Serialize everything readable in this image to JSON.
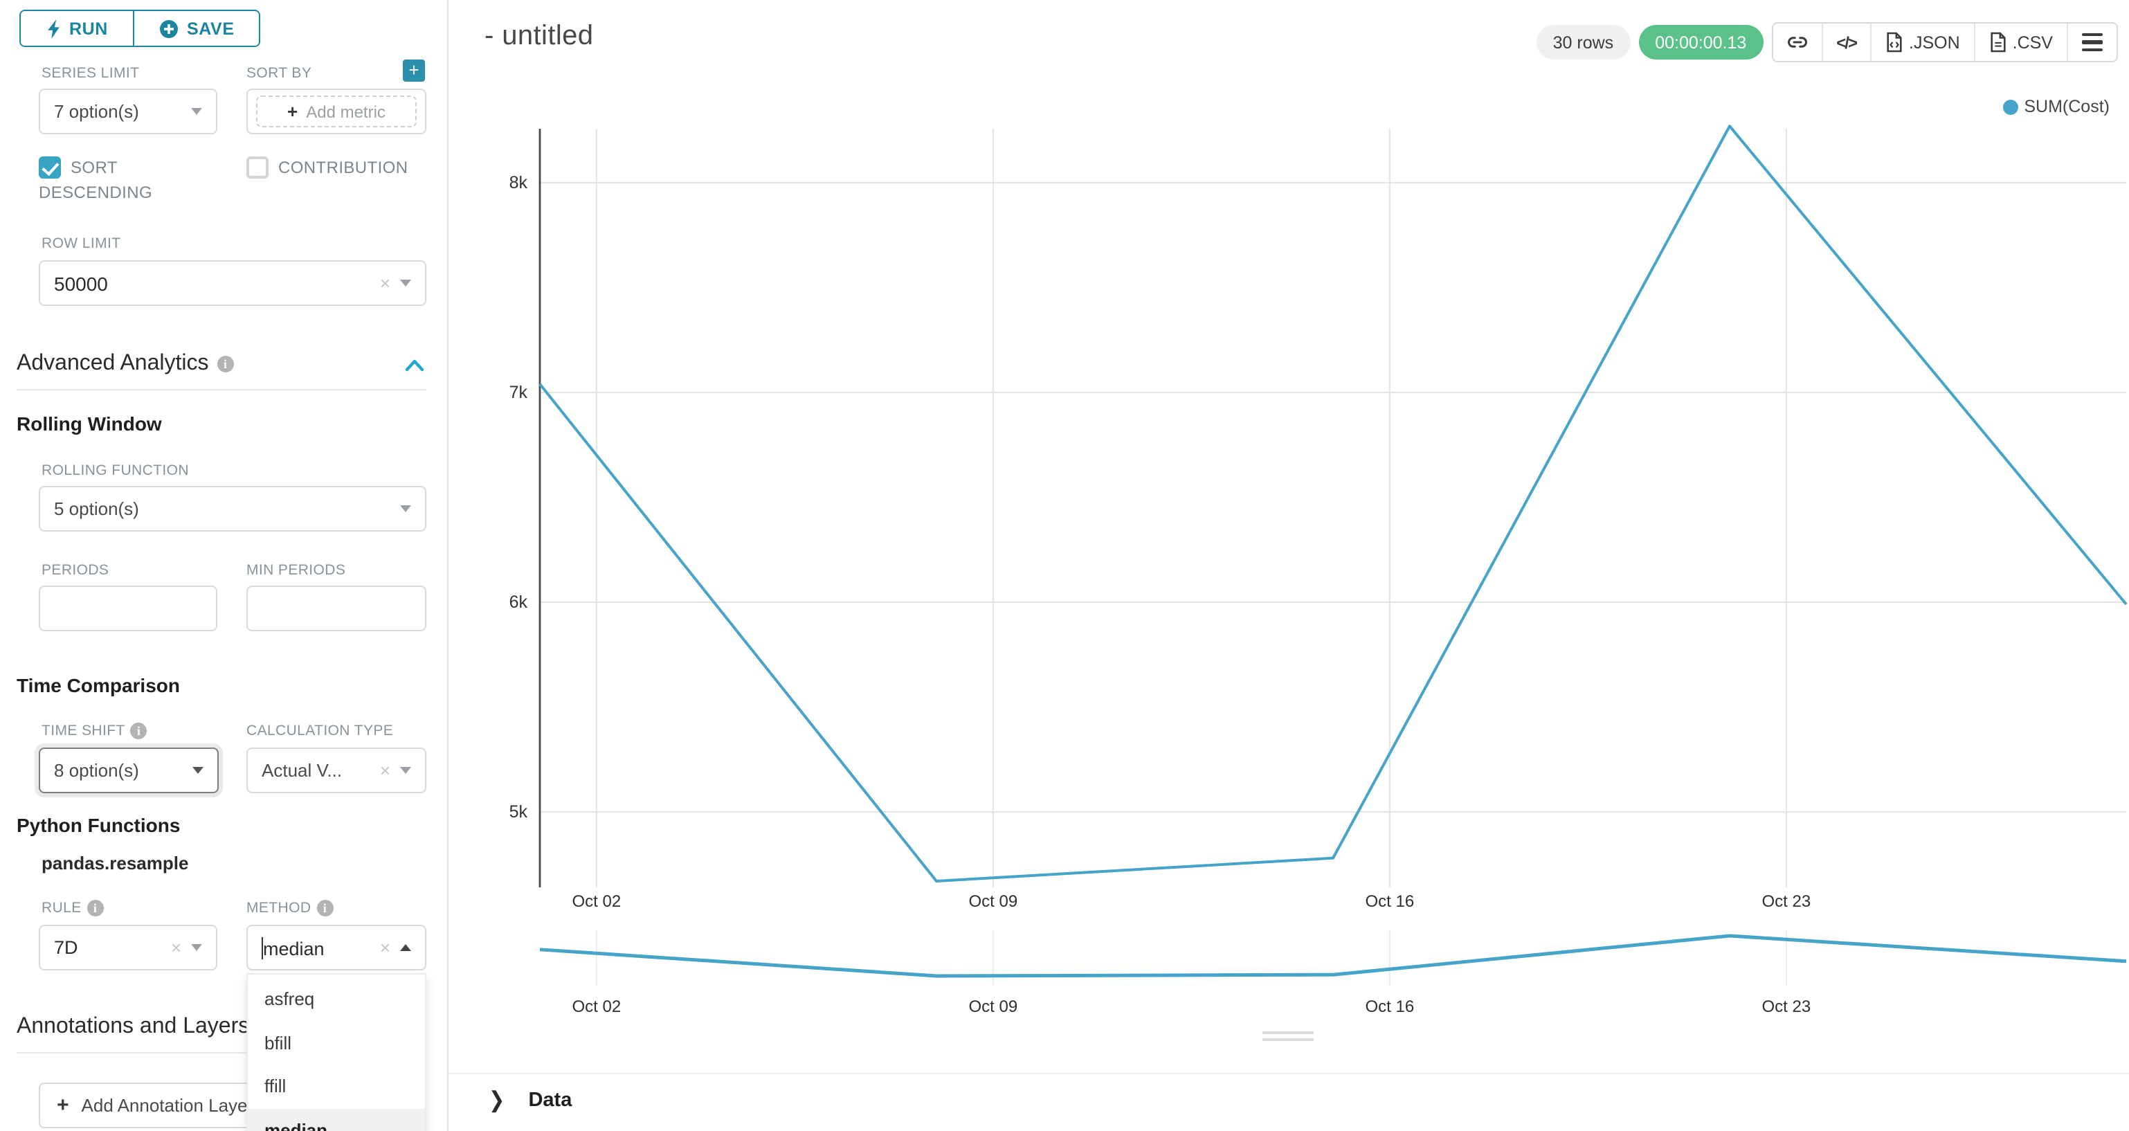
{
  "sidebar": {
    "run_label": "RUN",
    "save_label": "SAVE",
    "series_limit": {
      "label": "SERIES LIMIT",
      "value": "7 option(s)"
    },
    "sort_by": {
      "label": "SORT BY",
      "placeholder": "Add metric"
    },
    "sort_descending": {
      "label": "SORT DESCENDING",
      "checked": true
    },
    "contribution": {
      "label": "CONTRIBUTION",
      "checked": false
    },
    "row_limit": {
      "label": "ROW LIMIT",
      "value": "50000"
    },
    "advanced_analytics": {
      "title": "Advanced Analytics"
    },
    "rolling_window": {
      "title": "Rolling Window",
      "rolling_function": {
        "label": "ROLLING FUNCTION",
        "value": "5 option(s)"
      },
      "periods": {
        "label": "PERIODS",
        "value": ""
      },
      "min_periods": {
        "label": "MIN PERIODS",
        "value": ""
      }
    },
    "time_comparison": {
      "title": "Time Comparison",
      "time_shift": {
        "label": "TIME SHIFT",
        "value": "8 option(s)"
      },
      "calculation_type": {
        "label": "CALCULATION TYPE",
        "value": "Actual V..."
      }
    },
    "python_functions": {
      "title": "Python Functions",
      "subtitle": "pandas.resample",
      "rule": {
        "label": "RULE",
        "value": "7D"
      },
      "method": {
        "label": "METHOD",
        "value": "median",
        "options": [
          "asfreq",
          "bfill",
          "ffill",
          "median"
        ],
        "selected": "median"
      }
    },
    "annotations": {
      "title": "Annotations and Layers",
      "add_button": "Add Annotation Layer"
    }
  },
  "header": {
    "title": "- untitled",
    "rows_badge": "30 rows",
    "timer": "00:00:00.13",
    "export_json_label": ".JSON",
    "export_csv_label": ".CSV"
  },
  "data_panel": {
    "title": "Data"
  },
  "colors": {
    "accent": "#20a7c9",
    "button_teal": "#1a85a0",
    "line": "#45a4c8",
    "timer_green": "#5ac189"
  },
  "chart_data": {
    "type": "line",
    "title": "",
    "series": [
      {
        "name": "SUM(Cost)",
        "x": [
          "Oct 01",
          "Oct 08",
          "Oct 15",
          "Oct 22",
          "Oct 29"
        ],
        "values": [
          7040,
          4670,
          4780,
          8270,
          5990
        ]
      }
    ],
    "x_tick_labels": [
      "Oct 02",
      "Oct 09",
      "Oct 16",
      "Oct 23"
    ],
    "y_tick_labels": [
      "5k",
      "6k",
      "7k",
      "8k"
    ],
    "y_tick_values": [
      5000,
      6000,
      7000,
      8000
    ],
    "ylim": [
      4600,
      8350
    ],
    "grid": true,
    "legend": {
      "position": "top-right",
      "entries": [
        "SUM(Cost)"
      ]
    },
    "has_preview_strip": true
  }
}
